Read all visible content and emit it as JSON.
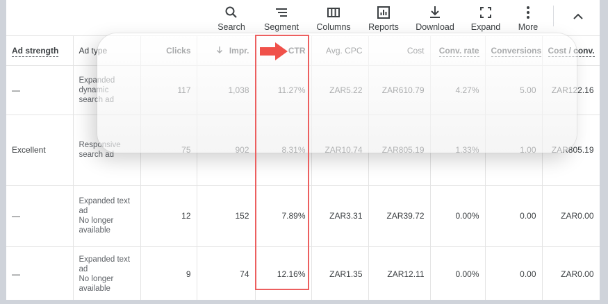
{
  "toolbar": {
    "items": [
      {
        "label": "Search",
        "icon": "search-icon"
      },
      {
        "label": "Segment",
        "icon": "segment-icon"
      },
      {
        "label": "Columns",
        "icon": "columns-icon"
      },
      {
        "label": "Reports",
        "icon": "reports-icon"
      },
      {
        "label": "Download",
        "icon": "download-icon"
      },
      {
        "label": "Expand",
        "icon": "expand-icon"
      },
      {
        "label": "More",
        "icon": "more-vert-icon"
      }
    ],
    "collapse_icon": "chevron-up-icon"
  },
  "table": {
    "headers": {
      "ad_strength": "Ad strength",
      "ad_type": "Ad type",
      "clicks": "Clicks",
      "impr": "Impr.",
      "ctr": "CTR",
      "avg_cpc": "Avg. CPC",
      "cost": "Cost",
      "conv_rate": "Conv. rate",
      "conversions": "Conversions",
      "cost_conv": "Cost / conv."
    },
    "rows": [
      {
        "ad_strength": "—",
        "ad_type_lines": [
          "Expanded",
          "dynamic",
          "search ad"
        ],
        "clicks": "117",
        "impr": "1,038",
        "ctr": "11.27%",
        "avg_cpc": "ZAR5.22",
        "cost": "ZAR610.79",
        "conv_rate": "4.27%",
        "conversions": "5.00",
        "cost_conv": "ZAR122.16"
      },
      {
        "ad_strength": "Excellent",
        "ad_type_lines": [
          "Responsive",
          "search ad"
        ],
        "clicks": "75",
        "impr": "902",
        "ctr": "8.31%",
        "avg_cpc": "ZAR10.74",
        "cost": "ZAR805.19",
        "conv_rate": "1.33%",
        "conversions": "1.00",
        "cost_conv": "ZAR805.19"
      },
      {
        "ad_strength": "—",
        "ad_type_lines": [
          "Expanded text",
          "ad",
          "No longer",
          "available"
        ],
        "clicks": "12",
        "impr": "152",
        "ctr": "7.89%",
        "avg_cpc": "ZAR3.31",
        "cost": "ZAR39.72",
        "conv_rate": "0.00%",
        "conversions": "0.00",
        "cost_conv": "ZAR0.00"
      },
      {
        "ad_strength": "—",
        "ad_type_lines": [
          "Expanded text",
          "ad",
          "No longer",
          "available"
        ],
        "clicks": "9",
        "impr": "74",
        "ctr": "12.16%",
        "avg_cpc": "ZAR1.35",
        "cost": "ZAR12.11",
        "conv_rate": "0.00%",
        "conversions": "0.00",
        "cost_conv": "ZAR0.00"
      }
    ]
  },
  "colors": {
    "highlight": "#ec5f5f",
    "arrow": "#f0514a"
  }
}
